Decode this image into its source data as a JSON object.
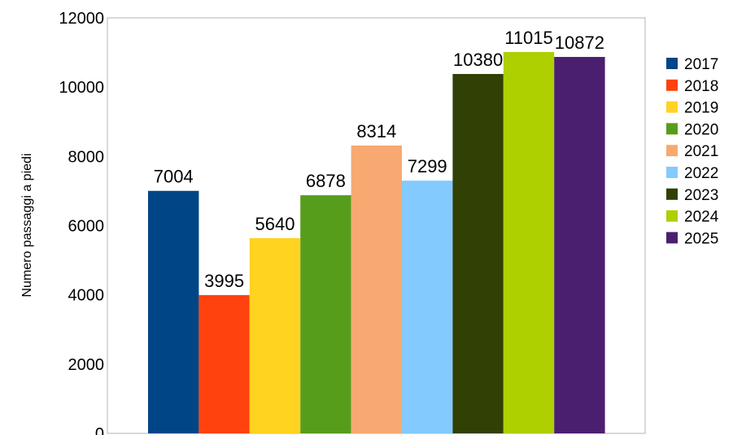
{
  "chart_data": {
    "type": "bar",
    "ylabel": "Numero passaggi a piedi",
    "ylim": [
      0,
      12000
    ],
    "yticks": [
      0,
      2000,
      4000,
      6000,
      8000,
      10000,
      12000
    ],
    "grid": false,
    "legend_position": "right",
    "series": [
      {
        "name": "2017",
        "value": 7004,
        "color": "#004586"
      },
      {
        "name": "2018",
        "value": 3995,
        "color": "#ff420e"
      },
      {
        "name": "2019",
        "value": 5640,
        "color": "#ffd320"
      },
      {
        "name": "2020",
        "value": 6878,
        "color": "#579d1c"
      },
      {
        "name": "2021",
        "value": 8314,
        "color": "#f8a971"
      },
      {
        "name": "2022",
        "value": 7299,
        "color": "#83caff"
      },
      {
        "name": "2023",
        "value": 10380,
        "color": "#314004"
      },
      {
        "name": "2024",
        "value": 11015,
        "color": "#aecf00"
      },
      {
        "name": "2025",
        "value": 10872,
        "color": "#4b1f6f"
      }
    ]
  }
}
